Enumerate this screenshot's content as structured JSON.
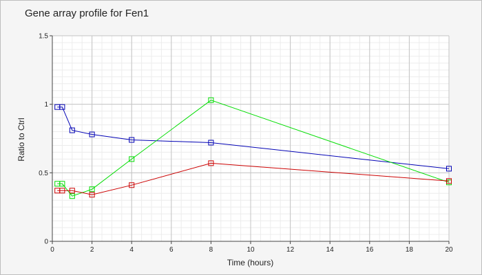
{
  "chart_data": {
    "type": "line",
    "title": "Gene array profile for Fen1",
    "xlabel": "Time (hours)",
    "ylabel": "Ratio to Ctrl",
    "xlim": [
      0,
      20
    ],
    "ylim": [
      0,
      1.5
    ],
    "x_ticks": [
      "0",
      "2",
      "4",
      "6",
      "8",
      "10",
      "12",
      "14",
      "16",
      "18",
      "20"
    ],
    "y_ticks": [
      "0",
      "0.5",
      "1",
      "1.5"
    ],
    "grid": true,
    "minor_grid": true,
    "legend": "none",
    "series": [
      {
        "color": "#0000b4",
        "marker": "square",
        "x": [
          0.25,
          0.5,
          1,
          2,
          4,
          8,
          20
        ],
        "y": [
          0.98,
          0.98,
          0.81,
          0.78,
          0.74,
          0.72,
          0.53
        ]
      },
      {
        "color": "#00dd00",
        "marker": "square",
        "x": [
          0.25,
          0.5,
          1,
          2,
          4,
          8,
          20
        ],
        "y": [
          0.42,
          0.42,
          0.33,
          0.38,
          0.6,
          1.03,
          0.43
        ]
      },
      {
        "color": "#cc0000",
        "marker": "square",
        "x": [
          0.25,
          0.5,
          1,
          2,
          4,
          8,
          20
        ],
        "y": [
          0.37,
          0.37,
          0.37,
          0.34,
          0.41,
          0.57,
          0.44
        ]
      }
    ]
  }
}
